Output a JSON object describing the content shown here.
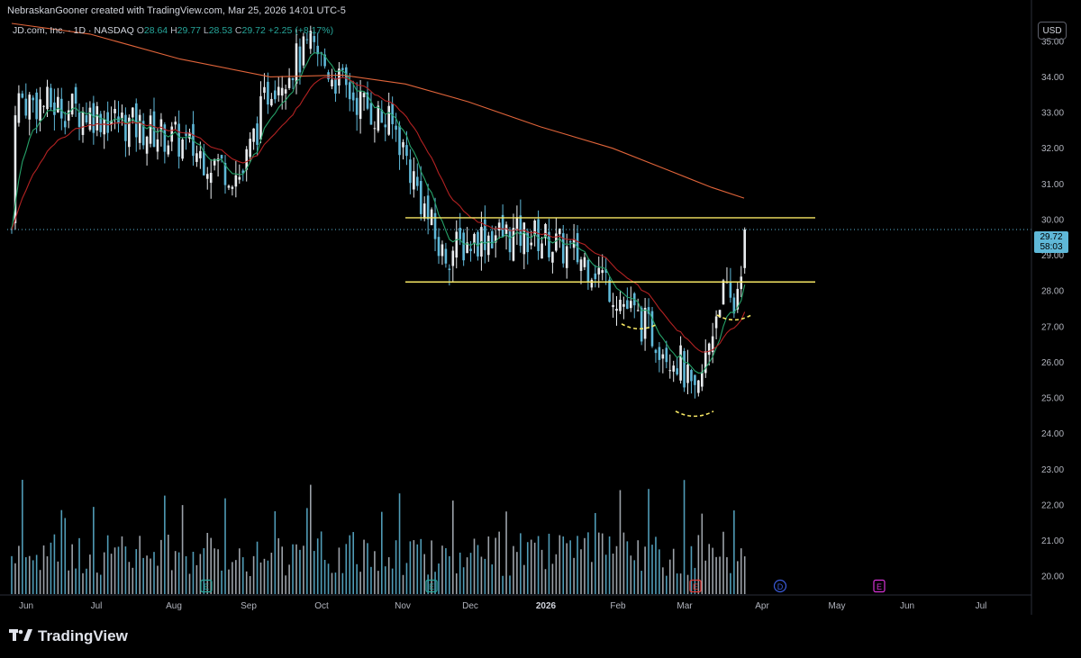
{
  "header": {
    "credit": "NebraskanGooner created with TradingView.com, Mar 25, 2026 14:01 UTC-5"
  },
  "legend": {
    "symbol": "JD.com, Inc. · 1D · NASDAQ",
    "open_label": "O",
    "open": "28.64",
    "high_label": "H",
    "high": "29.77",
    "low_label": "L",
    "low": "28.53",
    "close_label": "C",
    "close": "29.72",
    "change": "+2.25 (+8.17%)"
  },
  "currency_button": "USD",
  "last_price": {
    "price": "29.72",
    "countdown": "58:03"
  },
  "footer": {
    "brand": "TradingView"
  },
  "colors": {
    "candle": "#5fb8d8",
    "volume": "#b8bfc7",
    "ema_fast": "#26a269",
    "ema_mid": "#b22222",
    "sma_slow": "#e0643a",
    "levels": "#f5e663",
    "dashed_bases": "#f5e663",
    "background": "#000000"
  },
  "chart_data": {
    "type": "candlestick",
    "ylim": [
      19.5,
      35.6
    ],
    "y_ticks": [
      "35.00",
      "34.00",
      "33.00",
      "32.00",
      "31.00",
      "30.00",
      "29.00",
      "28.00",
      "27.00",
      "26.00",
      "25.00",
      "24.00",
      "23.00",
      "22.00",
      "21.00",
      "20.00"
    ],
    "x_ticks": [
      "Jun",
      "Jul",
      "Aug",
      "Sep",
      "Oct",
      "Nov",
      "Dec",
      "2026",
      "Feb",
      "Mar",
      "Apr",
      "May",
      "Jun",
      "Jul"
    ],
    "horizontal_levels": [
      30.05,
      28.25
    ],
    "event_markers": [
      {
        "label": "E",
        "month": "Aug"
      },
      {
        "label": "E",
        "month": "Nov"
      },
      {
        "label": "E",
        "month": "Mar"
      },
      {
        "label": "D",
        "month": "Apr"
      },
      {
        "label": "E",
        "month": "May"
      }
    ],
    "approx_close_path": [
      {
        "x": "Jun",
        "y": 33.4
      },
      {
        "x": "Jul",
        "y": 33.0
      },
      {
        "x": "Aug",
        "y": 32.3
      },
      {
        "x": "Sep",
        "y": 31.2
      },
      {
        "x": "Sep",
        "y": 33.8
      },
      {
        "x": "Oct",
        "y": 34.8
      },
      {
        "x": "Oct",
        "y": 33.6
      },
      {
        "x": "Nov",
        "y": 32.5
      },
      {
        "x": "Nov",
        "y": 29.0
      },
      {
        "x": "Dec",
        "y": 29.6
      },
      {
        "x": "2026",
        "y": 29.5
      },
      {
        "x": "Feb",
        "y": 28.7
      },
      {
        "x": "Feb",
        "y": 27.4
      },
      {
        "x": "Mar",
        "y": 26.0
      },
      {
        "x": "Mar",
        "y": 24.8
      },
      {
        "x": "Mar",
        "y": 28.0
      },
      {
        "x": "Mar",
        "y": 27.5
      },
      {
        "x": "Mar",
        "y": 29.72
      }
    ]
  }
}
